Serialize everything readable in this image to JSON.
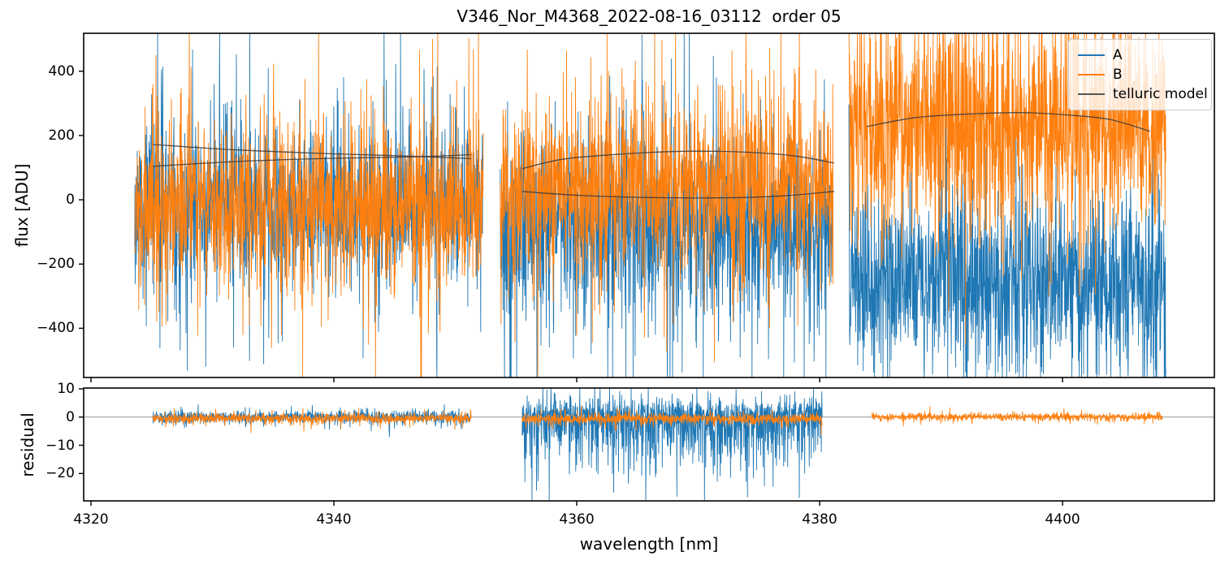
{
  "chart_data": {
    "type": "line",
    "title": "V346_Nor_M4368_2022-08-16_03112  order 05",
    "xlabel": "wavelength [nm]",
    "xlim": [
      4319.4,
      4412.5
    ],
    "xticks": [
      4320,
      4340,
      4360,
      4380,
      4400
    ],
    "grid": false,
    "panels": [
      {
        "id": "flux",
        "ylabel": "flux [ADU]",
        "ylim": [
          -553,
          518
        ],
        "yticks": [
          -400,
          -200,
          0,
          200,
          400
        ]
      },
      {
        "id": "residual",
        "ylabel": "residual",
        "ylim": [
          -29.7,
          10.3
        ],
        "yticks": [
          -20,
          -10,
          0,
          10
        ],
        "zero_line_y": 0
      }
    ],
    "legend": {
      "position": "upper right",
      "items": [
        {
          "label": "A",
          "color": "#1f77b4"
        },
        {
          "label": "B",
          "color": "#ff7f0e"
        },
        {
          "label": "telluric model",
          "color": "#555555"
        }
      ]
    },
    "colors": {
      "A": "#1f77b4",
      "B": "#ff7f0e",
      "telluric": "#3a3a3a",
      "zero_line": "#808080",
      "spine": "#000000"
    },
    "sampling_points_per_nm": 48,
    "flux_series": [
      {
        "name": "A",
        "color": "#1f77b4",
        "segments": [
          {
            "x0": 4323.6,
            "x1": 4352.3,
            "center": -20,
            "spos": 110,
            "sneg": 110,
            "tpos": 230,
            "tneg": 240,
            "tp": 0.22,
            "seed": 11
          },
          {
            "x0": 4353.7,
            "x1": 4381.1,
            "center": -80,
            "spos": 125,
            "sneg": 130,
            "tpos": 240,
            "tneg": 250,
            "tp": 0.22,
            "seed": 12
          },
          {
            "x0": 4382.4,
            "x1": 4408.5,
            "center": -255,
            "spos": 125,
            "sneg": 120,
            "tpos": 230,
            "tneg": 230,
            "tp": 0.2,
            "seed": 13
          }
        ]
      },
      {
        "name": "B",
        "color": "#ff7f0e",
        "segments": [
          {
            "x0": 4323.6,
            "x1": 4352.3,
            "center": -10,
            "spos": 115,
            "sneg": 115,
            "tpos": 235,
            "tneg": 235,
            "tp": 0.22,
            "seed": 21
          },
          {
            "x0": 4353.7,
            "x1": 4381.1,
            "center": 45,
            "spos": 115,
            "sneg": 120,
            "tpos": 235,
            "tneg": 235,
            "tp": 0.22,
            "seed": 22
          },
          {
            "x0": 4382.4,
            "x1": 4408.5,
            "center": 225,
            "spos": 150,
            "sneg": 140,
            "tpos": 250,
            "tneg": 240,
            "tp": 0.24,
            "seed": 23
          }
        ]
      }
    ],
    "telluric_model": {
      "color": "#3a3a3a",
      "curves": [
        {
          "points": [
            [
              4325.1,
              172
            ],
            [
              4332,
              155
            ],
            [
              4340,
              143
            ],
            [
              4346,
              136
            ],
            [
              4351.3,
              128
            ]
          ]
        },
        {
          "points": [
            [
              4325.1,
              104
            ],
            [
              4332,
              119
            ],
            [
              4340,
              129
            ],
            [
              4346,
              133
            ],
            [
              4351.3,
              140
            ]
          ]
        },
        {
          "points": [
            [
              4355.5,
              97
            ],
            [
              4359,
              127
            ],
            [
              4364,
              143
            ],
            [
              4369,
              151
            ],
            [
              4374,
              148
            ],
            [
              4378,
              136
            ],
            [
              4381.2,
              114
            ]
          ]
        },
        {
          "points": [
            [
              4355.5,
              26
            ],
            [
              4360,
              14
            ],
            [
              4366,
              7
            ],
            [
              4372,
              6
            ],
            [
              4377,
              12
            ],
            [
              4381.2,
              26
            ]
          ]
        },
        {
          "points": [
            [
              4383.9,
              228
            ],
            [
              4388,
              256
            ],
            [
              4393,
              268
            ],
            [
              4397,
              271
            ],
            [
              4401,
              262
            ],
            [
              4404,
              249
            ],
            [
              4407.2,
              213
            ]
          ]
        }
      ]
    },
    "residual_series": [
      {
        "name": "A",
        "color": "#1f77b4",
        "segments": [
          {
            "x0": 4325.1,
            "x1": 4351.3,
            "center": 0.1,
            "spos": 0.9,
            "sneg": 1.1,
            "tpos": 1.9,
            "tneg": 2.2,
            "tp": 0.18,
            "seed": 31
          },
          {
            "x0": 4355.5,
            "x1": 4380.2,
            "center": 0.5,
            "spos": 2.5,
            "sneg": 8.0,
            "tpos": 4.5,
            "tneg": 14.0,
            "tp": 0.3,
            "seed": 32
          }
        ]
      },
      {
        "name": "B",
        "color": "#ff7f0e",
        "segments": [
          {
            "x0": 4325.1,
            "x1": 4351.3,
            "center": -0.4,
            "spos": 0.8,
            "sneg": 0.9,
            "tpos": 1.5,
            "tneg": 1.7,
            "tp": 0.18,
            "seed": 41
          },
          {
            "x0": 4355.5,
            "x1": 4380.2,
            "center": -0.5,
            "spos": 0.8,
            "sneg": 1.0,
            "tpos": 1.6,
            "tneg": 2.0,
            "tp": 0.2,
            "seed": 42
          },
          {
            "x0": 4384.3,
            "x1": 4408.2,
            "center": 0.1,
            "spos": 0.6,
            "sneg": 0.7,
            "tpos": 1.1,
            "tneg": 1.3,
            "tp": 0.18,
            "seed": 43
          }
        ]
      }
    ]
  }
}
